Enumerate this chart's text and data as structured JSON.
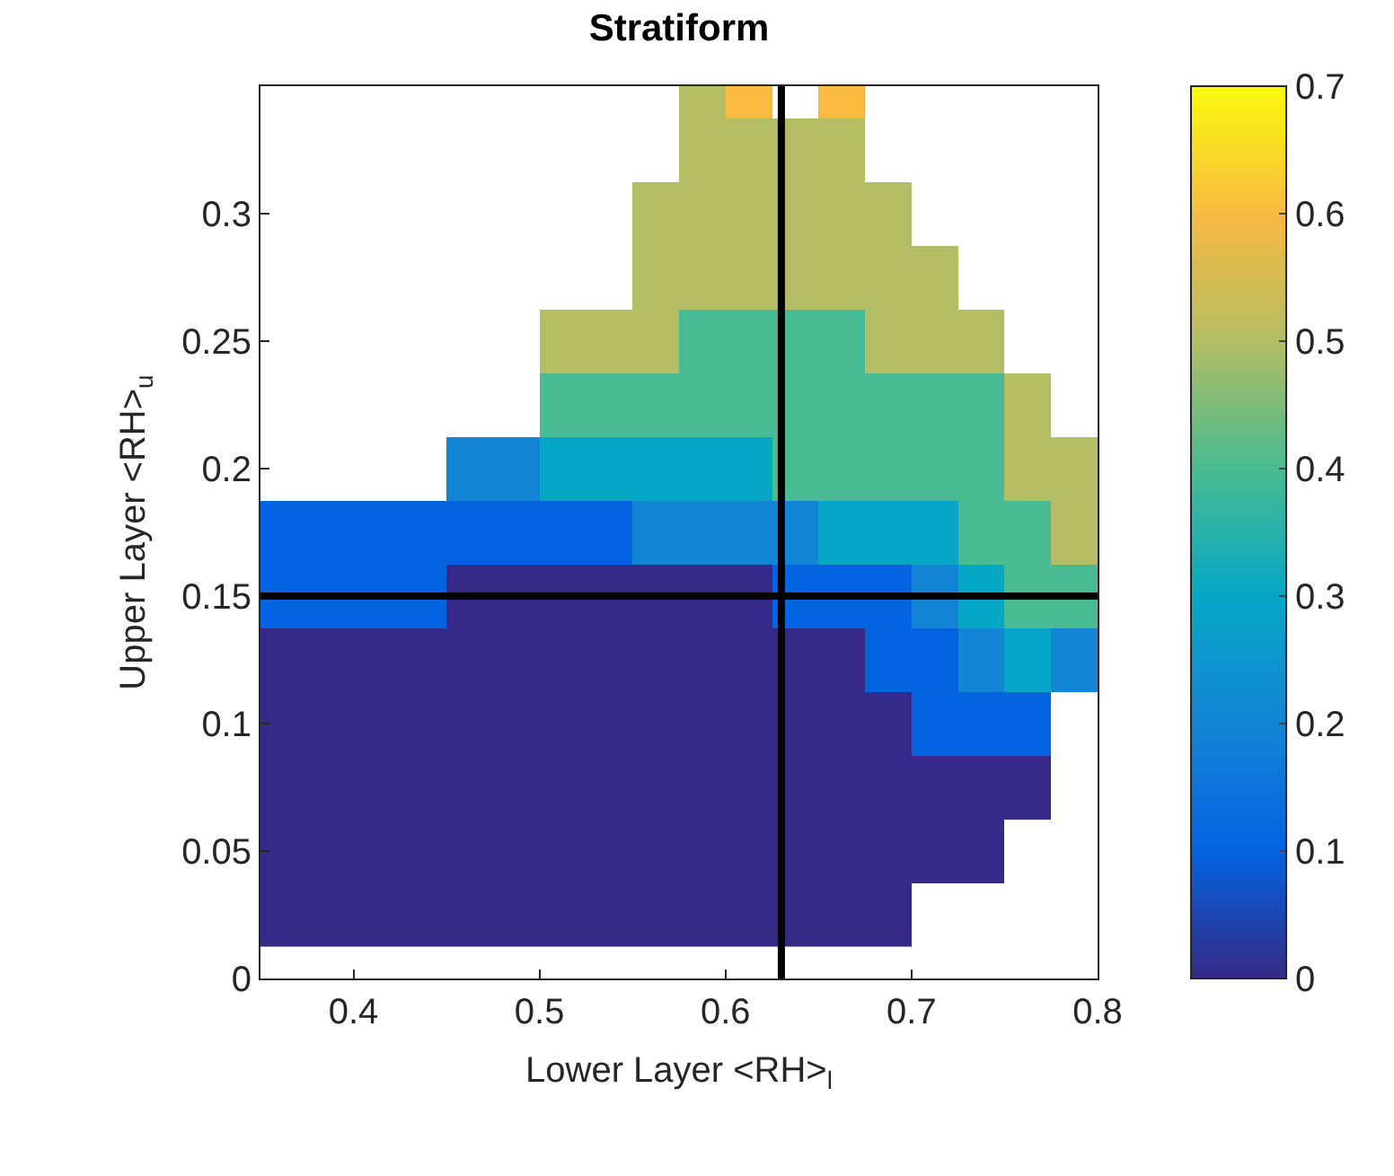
{
  "chart_data": {
    "type": "heatmap",
    "title": "Stratiform",
    "xlabel": "Lower Layer <RH>$_{l}$",
    "ylabel": "Upper Layer <RH>$_{u}$",
    "x": [
      0.3625,
      0.3875,
      0.4125,
      0.4375,
      0.4625,
      0.4875,
      0.5125,
      0.5375,
      0.5625,
      0.5875,
      0.6125,
      0.6375,
      0.6625,
      0.6875,
      0.7125,
      0.7375,
      0.7625,
      0.7875
    ],
    "y": [
      0.025,
      0.05,
      0.075,
      0.1,
      0.125,
      0.15,
      0.175,
      0.2,
      0.225,
      0.25,
      0.275,
      0.3,
      0.325,
      0.35
    ],
    "cells": [
      [
        0,
        0,
        0,
        0,
        0,
        0,
        0,
        0,
        0,
        0,
        0,
        0,
        0,
        0,
        null,
        null,
        null,
        null
      ],
      [
        0,
        0,
        0,
        0,
        0,
        0,
        0,
        0,
        0,
        0,
        0,
        0,
        0,
        0,
        0,
        0,
        null,
        null
      ],
      [
        0,
        0,
        0,
        0,
        0,
        0,
        0,
        0,
        0,
        0,
        0,
        0,
        0,
        0,
        0,
        0,
        0,
        null
      ],
      [
        0,
        0,
        0,
        0,
        0,
        0,
        0,
        0,
        0,
        0,
        0,
        0,
        0,
        0,
        0.1,
        0.1,
        0.1,
        null
      ],
      [
        0,
        0,
        0,
        0,
        0,
        0,
        0,
        0,
        0,
        0,
        0,
        0,
        0,
        0.1,
        0.1,
        0.2,
        0.3,
        0.2
      ],
      [
        0.1,
        0.1,
        0.1,
        0.1,
        0,
        0,
        0,
        0,
        0,
        0,
        0,
        0.1,
        0.1,
        0.1,
        0.2,
        0.3,
        0.4,
        0.4
      ],
      [
        0.1,
        0.1,
        0.1,
        0.1,
        0.1,
        0.1,
        0.1,
        0.1,
        0.2,
        0.2,
        0.2,
        0.2,
        0.3,
        0.3,
        0.3,
        0.4,
        0.4,
        0.5
      ],
      [
        null,
        null,
        null,
        null,
        0.2,
        0.2,
        0.3,
        0.3,
        0.3,
        0.3,
        0.3,
        0.4,
        0.4,
        0.4,
        0.4,
        0.4,
        0.5,
        0.5
      ],
      [
        null,
        null,
        null,
        null,
        null,
        null,
        0.4,
        0.4,
        0.4,
        0.4,
        0.4,
        0.4,
        0.4,
        0.4,
        0.4,
        0.4,
        0.5,
        null
      ],
      [
        null,
        null,
        null,
        null,
        null,
        null,
        0.5,
        0.5,
        0.5,
        0.4,
        0.4,
        0.4,
        0.4,
        0.5,
        0.5,
        0.5,
        null,
        null
      ],
      [
        null,
        null,
        null,
        null,
        null,
        null,
        null,
        null,
        0.5,
        0.5,
        0.5,
        0.5,
        0.5,
        0.5,
        0.5,
        null,
        null,
        null
      ],
      [
        null,
        null,
        null,
        null,
        null,
        null,
        null,
        null,
        0.5,
        0.5,
        0.5,
        0.5,
        0.5,
        0.5,
        null,
        null,
        null,
        null
      ],
      [
        null,
        null,
        null,
        null,
        null,
        null,
        null,
        null,
        null,
        0.5,
        0.5,
        0.5,
        0.5,
        null,
        null,
        null,
        null,
        null
      ],
      [
        null,
        null,
        null,
        null,
        null,
        null,
        null,
        null,
        null,
        0.5,
        0.6,
        null,
        0.6,
        null,
        null,
        null,
        null,
        null
      ]
    ],
    "xlim": [
      0.35,
      0.8
    ],
    "xticks": [
      0.4,
      0.5,
      0.6,
      0.7,
      0.8
    ],
    "ylim": [
      0,
      0.35
    ],
    "yticks": [
      0,
      0.05,
      0.1,
      0.15,
      0.2,
      0.25,
      0.3
    ],
    "clim": [
      0,
      0.7
    ],
    "cticks": [
      0,
      0.1,
      0.2,
      0.3,
      0.4,
      0.5,
      0.6,
      0.7
    ],
    "ref_lines": [
      {
        "axis": "x",
        "value": 0.63,
        "color": "#000000"
      },
      {
        "axis": "y",
        "value": 0.15,
        "color": "#000000"
      }
    ]
  }
}
